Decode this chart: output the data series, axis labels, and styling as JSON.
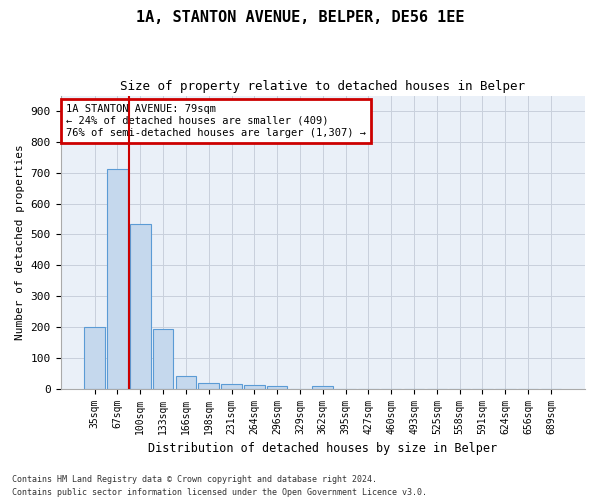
{
  "title1": "1A, STANTON AVENUE, BELPER, DE56 1EE",
  "title2": "Size of property relative to detached houses in Belper",
  "xlabel": "Distribution of detached houses by size in Belper",
  "ylabel": "Number of detached properties",
  "categories": [
    "35sqm",
    "67sqm",
    "100sqm",
    "133sqm",
    "166sqm",
    "198sqm",
    "231sqm",
    "264sqm",
    "296sqm",
    "329sqm",
    "362sqm",
    "395sqm",
    "427sqm",
    "460sqm",
    "493sqm",
    "525sqm",
    "558sqm",
    "591sqm",
    "624sqm",
    "656sqm",
    "689sqm"
  ],
  "values": [
    200,
    713,
    535,
    193,
    42,
    20,
    15,
    13,
    10,
    0,
    9,
    0,
    0,
    0,
    0,
    0,
    0,
    0,
    0,
    0,
    0
  ],
  "bar_color": "#c5d8ed",
  "bar_edge_color": "#5b9bd5",
  "property_line_x": 1.5,
  "property_line_color": "#cc0000",
  "annotation_line1": "1A STANTON AVENUE: 79sqm",
  "annotation_line2": "← 24% of detached houses are smaller (409)",
  "annotation_line3": "76% of semi-detached houses are larger (1,307) →",
  "annotation_box_color": "#cc0000",
  "ylim": [
    0,
    950
  ],
  "yticks": [
    0,
    100,
    200,
    300,
    400,
    500,
    600,
    700,
    800,
    900
  ],
  "footer1": "Contains HM Land Registry data © Crown copyright and database right 2024.",
  "footer2": "Contains public sector information licensed under the Open Government Licence v3.0.",
  "background_color": "#ffffff",
  "plot_bg_color": "#eaf0f8",
  "grid_color": "#c8d0dc"
}
